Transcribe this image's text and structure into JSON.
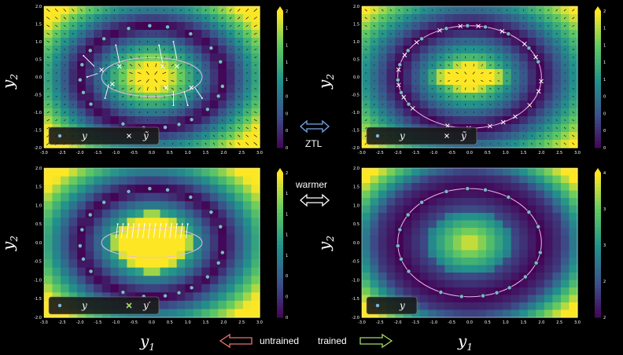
{
  "axes": {
    "ylabel": "y",
    "ylabel_sub": "2",
    "xlabel": "y",
    "xlabel_sub": "1",
    "xticks": [
      "-3.0",
      "-2.5",
      "-2.0",
      "-1.5",
      "-1.0",
      "-0.5",
      "0.0",
      "0.5",
      "1.0",
      "1.5",
      "2.0",
      "2.5",
      "3.0"
    ],
    "yticks": [
      "2.0",
      "1.5",
      "1.0",
      "0.5",
      "0.0",
      "-0.5",
      "-1.0",
      "-1.5",
      "-2.0"
    ]
  },
  "panels": {
    "top_left": {
      "colorbar": [
        "2.00",
        "1.75",
        "1.50",
        "1.25",
        "1.00",
        "0.75",
        "0.50",
        "0.25",
        "0.00"
      ],
      "legend": {
        "item1": "y",
        "item2": "ỹ"
      }
    },
    "top_right": {
      "colorbar": [
        "2.00",
        "1.75",
        "1.50",
        "1.25",
        "1.00",
        "0.75",
        "0.50",
        "0.25",
        "0.00"
      ],
      "legend": {
        "item1": "y",
        "item2": "ỹ"
      }
    },
    "bottom_left": {
      "colorbar": [
        "2.00",
        "1.75",
        "1.50",
        "1.25",
        "1.00",
        "0.75",
        "0.50",
        "0.25"
      ],
      "legend": {
        "item1": "y",
        "item2": "y′"
      }
    },
    "bottom_right": {
      "colorbar": [
        "4.0",
        "3.5",
        "3.0",
        "2.5",
        "2.0"
      ],
      "legend": {
        "item1": "y"
      }
    }
  },
  "middle": {
    "ztl": "ZTL",
    "warmer": "warmer"
  },
  "bottom": {
    "untrained": "untrained",
    "trained": "trained"
  },
  "colors": {
    "untrained_arrow": "#e8746a",
    "trained_arrow": "#a8d86a",
    "double_arrow_top": "#7aa8e8",
    "double_arrow_bottom": "#ffffff"
  }
}
